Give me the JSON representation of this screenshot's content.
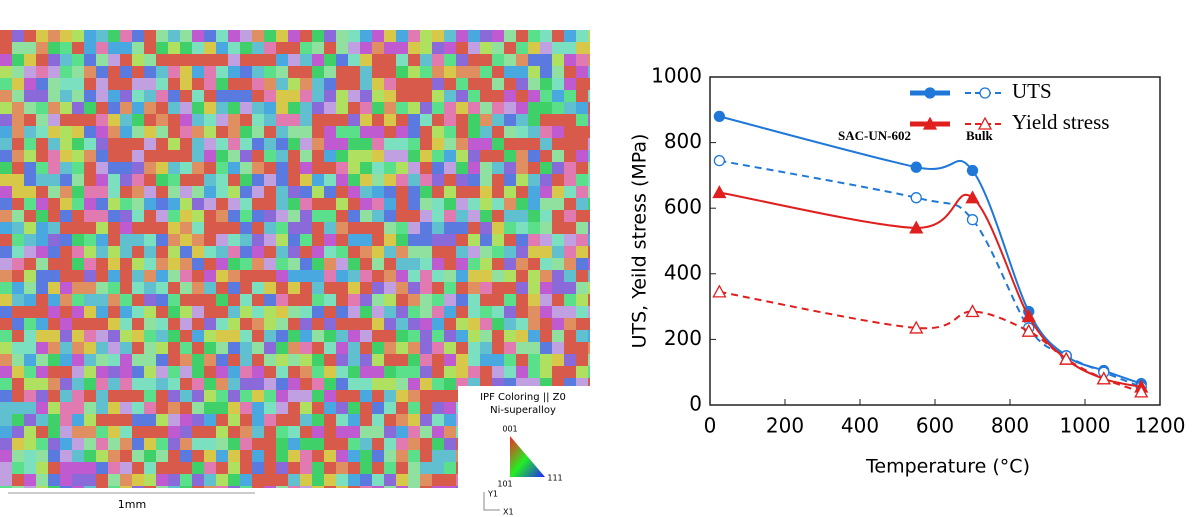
{
  "micrograph": {
    "legend_title": "IPF Coloring || Z0",
    "legend_subtitle": "Ni-superalloy",
    "corners": [
      "001",
      "101",
      "111"
    ],
    "scale_bar": "1mm",
    "axis_y": "Y1",
    "axis_x": "X1"
  },
  "chart_data": {
    "type": "line",
    "x": [
      25,
      550,
      700,
      850,
      950,
      1050,
      1150
    ],
    "series": [
      {
        "name": "UTS",
        "group": "SAC-UN-602",
        "color": "#1f78d8",
        "marker": "circle",
        "dashed": false,
        "values": [
          880,
          725,
          715,
          285,
          150,
          105,
          65
        ]
      },
      {
        "name": "UTS",
        "group": "Bulk",
        "color": "#1f78d8",
        "marker": "circle",
        "dashed": true,
        "values": [
          745,
          632,
          565,
          235,
          150,
          100,
          55
        ]
      },
      {
        "name": "Yield stress",
        "group": "SAC-UN-602",
        "color": "#e01f1f",
        "marker": "triangle",
        "dashed": false,
        "values": [
          648,
          540,
          632,
          270,
          140,
          80,
          55
        ]
      },
      {
        "name": "Yield stress",
        "group": "Bulk",
        "color": "#e01f1f",
        "marker": "triangle",
        "dashed": true,
        "values": [
          345,
          235,
          285,
          225,
          140,
          80,
          40
        ]
      }
    ],
    "xlabel": "Temperature (°C)",
    "ylabel": "UTS, Yeild stress (MPa)",
    "xlim": [
      0,
      1200
    ],
    "xticks": [
      0,
      200,
      400,
      600,
      800,
      1000,
      1200
    ],
    "ylim": [
      0,
      1000
    ],
    "yticks": [
      0,
      200,
      400,
      600,
      800,
      1000
    ]
  }
}
